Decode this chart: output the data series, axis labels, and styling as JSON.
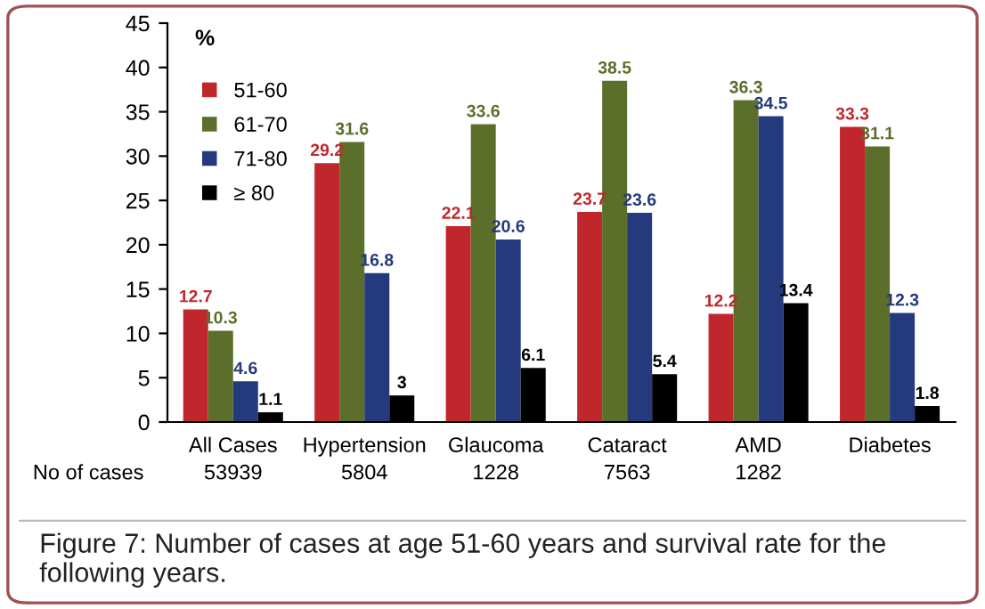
{
  "chart_data": {
    "type": "bar",
    "ylabel": "%",
    "categories": [
      "All Cases",
      "Hypertension",
      "Glaucoma",
      "Cataract",
      "AMD",
      "Diabetes"
    ],
    "series": [
      {
        "name": "51-60",
        "color": "#c0272d",
        "values": [
          12.7,
          29.2,
          22.1,
          23.7,
          12.2,
          33.3
        ]
      },
      {
        "name": "61-70",
        "color": "#5b6e2a",
        "values": [
          10.3,
          31.6,
          33.6,
          38.5,
          36.3,
          31.1
        ]
      },
      {
        "name": "71-80",
        "color": "#243a7c",
        "values": [
          4.6,
          16.8,
          20.6,
          23.6,
          34.5,
          12.3
        ]
      },
      {
        "name": "≥ 80",
        "color": "#000000",
        "values": [
          1.1,
          3,
          6.1,
          5.4,
          13.4,
          1.8
        ]
      }
    ],
    "ylim": [
      0,
      45
    ],
    "yticks": [
      0,
      5,
      10,
      15,
      20,
      25,
      30,
      35,
      40,
      45
    ],
    "grid": false,
    "legend": "top left",
    "data_labels": true,
    "annotations": [
      "No of cases",
      "53939",
      "5804",
      "1228",
      "7563",
      "1282",
      "Figure 7: Number of cases at age 51-60 years and survival rate for the following years."
    ]
  }
}
